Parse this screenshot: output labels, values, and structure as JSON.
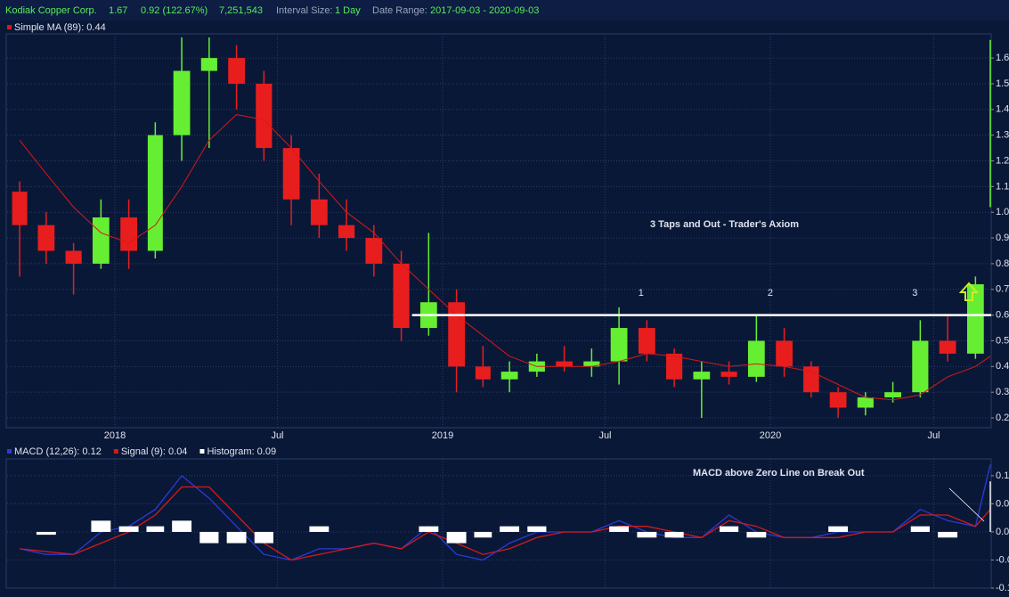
{
  "header": {
    "symbol": "Kodiak Copper Corp.",
    "last": "1.67",
    "change": "0.92 (122.67%)",
    "volume": "7,251,543",
    "interval_label": "Interval Size:",
    "interval": "1 Day",
    "range_label": "Date Range:",
    "range": "2017-09-03 - 2020-09-03"
  },
  "chart_data": [
    {
      "type": "candlestick",
      "x": [
        "2017-09",
        "2017-10",
        "2017-11",
        "2017-12",
        "2018-01",
        "2018-02",
        "2018-03",
        "2018-04",
        "2018-05",
        "2018-06",
        "2018-07",
        "2018-08",
        "2018-09",
        "2018-10",
        "2018-11",
        "2018-12",
        "2019-01",
        "2019-02",
        "2019-03",
        "2019-04",
        "2019-05",
        "2019-06",
        "2019-07",
        "2019-08",
        "2019-09",
        "2019-10",
        "2019-11",
        "2019-12",
        "2020-01",
        "2020-02",
        "2020-03",
        "2020-04",
        "2020-05",
        "2020-06",
        "2020-07",
        "2020-08",
        "2020-09"
      ],
      "open": [
        1.08,
        0.95,
        0.85,
        0.8,
        0.98,
        0.85,
        1.3,
        1.55,
        1.6,
        1.5,
        1.25,
        1.05,
        0.95,
        0.9,
        0.8,
        0.55,
        0.65,
        0.4,
        0.35,
        0.38,
        0.42,
        0.4,
        0.42,
        0.55,
        0.45,
        0.35,
        0.38,
        0.36,
        0.5,
        0.4,
        0.3,
        0.24,
        0.28,
        0.3,
        0.5,
        0.45,
        1.02
      ],
      "high": [
        1.12,
        1.0,
        0.88,
        1.05,
        1.05,
        1.35,
        1.68,
        1.68,
        1.65,
        1.55,
        1.3,
        1.15,
        1.05,
        0.95,
        0.85,
        0.92,
        0.7,
        0.48,
        0.42,
        0.45,
        0.48,
        0.47,
        0.63,
        0.58,
        0.47,
        0.42,
        0.42,
        0.6,
        0.55,
        0.42,
        0.32,
        0.3,
        0.34,
        0.58,
        0.6,
        0.75,
        1.67
      ],
      "low": [
        0.75,
        0.8,
        0.68,
        0.78,
        0.78,
        0.82,
        1.2,
        1.25,
        1.4,
        1.2,
        0.95,
        0.9,
        0.85,
        0.75,
        0.5,
        0.52,
        0.3,
        0.32,
        0.3,
        0.36,
        0.38,
        0.36,
        0.33,
        0.42,
        0.32,
        0.2,
        0.33,
        0.34,
        0.36,
        0.28,
        0.2,
        0.21,
        0.26,
        0.28,
        0.42,
        0.43,
        1.02
      ],
      "close": [
        0.95,
        0.85,
        0.8,
        0.98,
        0.85,
        1.3,
        1.55,
        1.6,
        1.5,
        1.25,
        1.05,
        0.95,
        0.9,
        0.8,
        0.55,
        0.65,
        0.4,
        0.35,
        0.38,
        0.42,
        0.4,
        0.42,
        0.55,
        0.45,
        0.35,
        0.38,
        0.36,
        0.5,
        0.4,
        0.3,
        0.24,
        0.28,
        0.3,
        0.5,
        0.45,
        0.72,
        1.67
      ],
      "up_color": "#66ee33",
      "down_color": "#e81e1e",
      "ma": {
        "name": "Simple MA (89): 0.44",
        "color": "#d81818",
        "values": [
          1.28,
          1.15,
          1.02,
          0.92,
          0.88,
          0.95,
          1.1,
          1.28,
          1.38,
          1.36,
          1.25,
          1.12,
          1.0,
          0.92,
          0.8,
          0.7,
          0.6,
          0.52,
          0.44,
          0.4,
          0.4,
          0.4,
          0.42,
          0.45,
          0.44,
          0.42,
          0.4,
          0.41,
          0.4,
          0.38,
          0.33,
          0.28,
          0.27,
          0.29,
          0.36,
          0.4,
          0.44
        ]
      },
      "resistance": {
        "value": 0.6,
        "start": "2018-11-28",
        "color": "#ffffff"
      },
      "annotations": [
        {
          "text": "3 Taps and Out - Trader's Axiom"
        },
        {
          "text": "1",
          "x": "2019-08-10"
        },
        {
          "text": "2",
          "x": "2020-01-01"
        },
        {
          "text": "3",
          "x": "2020-06-10"
        }
      ],
      "xlim": [
        "2017-09-03",
        "2020-09-03"
      ],
      "xticks": [
        {
          "value": "2018-01-01",
          "label": "2018"
        },
        {
          "value": "2018-07-01",
          "label": "Jul"
        },
        {
          "value": "2019-01-01",
          "label": "2019"
        },
        {
          "value": "2019-07-01",
          "label": "Jul"
        },
        {
          "value": "2020-01-01",
          "label": "2020"
        },
        {
          "value": "2020-07-01",
          "label": "Jul"
        }
      ],
      "ylim": [
        0.162,
        1.694
      ],
      "yticks": [
        0.2,
        0.3,
        0.4,
        0.5,
        0.6,
        0.7,
        0.8,
        0.9,
        {
          "value": 1,
          "label": "1.0"
        },
        1.1,
        1.2,
        1.3,
        1.4,
        1.5,
        1.6
      ],
      "grid": true
    },
    {
      "type": "macd",
      "x": [
        "2017-09",
        "2017-10",
        "2017-11",
        "2017-12",
        "2018-01",
        "2018-02",
        "2018-03",
        "2018-04",
        "2018-05",
        "2018-06",
        "2018-07",
        "2018-08",
        "2018-09",
        "2018-10",
        "2018-11",
        "2018-12",
        "2019-01",
        "2019-02",
        "2019-03",
        "2019-04",
        "2019-05",
        "2019-06",
        "2019-07",
        "2019-08",
        "2019-09",
        "2019-10",
        "2019-11",
        "2019-12",
        "2020-01",
        "2020-02",
        "2020-03",
        "2020-04",
        "2020-05",
        "2020-06",
        "2020-07",
        "2020-08",
        "2020-09"
      ],
      "series": [
        {
          "name": "MACD (12,26): 0.12",
          "color": "#2a3bd8",
          "values": [
            -0.03,
            -0.04,
            -0.04,
            0.0,
            0.01,
            0.04,
            0.1,
            0.06,
            0.01,
            -0.04,
            -0.05,
            -0.03,
            -0.03,
            -0.02,
            -0.03,
            0.01,
            -0.04,
            -0.05,
            -0.02,
            0.0,
            0.0,
            0.0,
            0.02,
            0.0,
            -0.01,
            -0.01,
            0.03,
            0.0,
            -0.01,
            -0.01,
            0.0,
            0.0,
            0.0,
            0.04,
            0.02,
            0.01,
            0.12
          ]
        },
        {
          "name": "Signal (9): 0.04",
          "color": "#d81818",
          "values": [
            -0.03,
            -0.035,
            -0.04,
            -0.02,
            0.0,
            0.03,
            0.08,
            0.08,
            0.03,
            -0.02,
            -0.05,
            -0.04,
            -0.03,
            -0.02,
            -0.03,
            0.0,
            -0.02,
            -0.04,
            -0.03,
            -0.01,
            0.0,
            0.0,
            0.01,
            0.01,
            0.0,
            -0.01,
            0.02,
            0.01,
            -0.01,
            -0.01,
            -0.01,
            0.0,
            0.0,
            0.03,
            0.03,
            0.01,
            0.04
          ]
        },
        {
          "name": "Histogram: 0.09",
          "color": "#ffffff",
          "kind": "histogram",
          "values": [
            0.0,
            -0.005,
            0.0,
            0.02,
            0.01,
            0.01,
            0.02,
            -0.02,
            -0.02,
            -0.02,
            0.0,
            0.01,
            0.0,
            0.0,
            0.0,
            0.01,
            -0.02,
            -0.01,
            0.01,
            0.01,
            0.0,
            0.0,
            0.01,
            -0.01,
            -0.01,
            0.0,
            0.01,
            -0.01,
            0.0,
            0.0,
            0.01,
            0.0,
            0.0,
            0.01,
            -0.01,
            0.0,
            0.09
          ]
        }
      ],
      "annotations": [
        {
          "text": "MACD above Zero Line on Break Out"
        }
      ],
      "xlim": [
        "2017-09-03",
        "2020-09-03"
      ],
      "xticks": [
        "2018-01-01",
        "2018-07-01",
        "2019-01-01",
        "2019-07-01",
        "2020-01-01",
        "2020-07-01"
      ],
      "ylim": [
        -0.1,
        0.13
      ],
      "yticks": [
        -0.1,
        -0.05,
        {
          "value": 0,
          "label": "0.00"
        },
        0.05,
        0.1
      ],
      "grid": true
    }
  ]
}
